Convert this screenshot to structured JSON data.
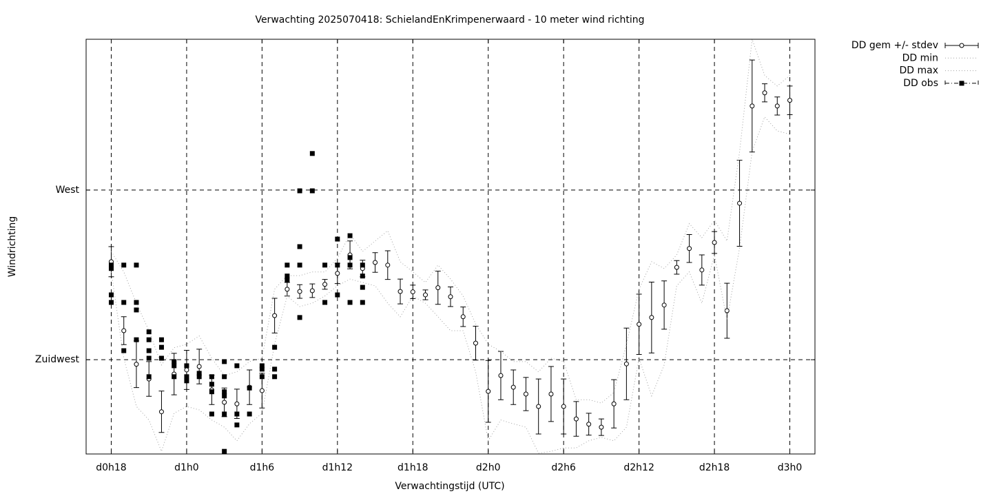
{
  "chart_data": {
    "type": "errorbar",
    "title": "Verwachting 2025070418: SchielandEnKrimpenerwaard - 10 meter wind richting",
    "xlabel": "Verwachtingstijd (UTC)",
    "ylabel": "Windrichting",
    "xlim": [
      16,
      74
    ],
    "ylim": [
      200,
      310
    ],
    "xticks": [
      {
        "value": 18,
        "label": "d0h18"
      },
      {
        "value": 24,
        "label": "d1h0"
      },
      {
        "value": 30,
        "label": "d1h6"
      },
      {
        "value": 36,
        "label": "d1h12"
      },
      {
        "value": 42,
        "label": "d1h18"
      },
      {
        "value": 48,
        "label": "d2h0"
      },
      {
        "value": 54,
        "label": "d2h6"
      },
      {
        "value": 60,
        "label": "d2h12"
      },
      {
        "value": 66,
        "label": "d2h18"
      },
      {
        "value": 72,
        "label": "d3h0"
      }
    ],
    "yticks": [
      {
        "value": 225,
        "label": "Zuidwest"
      },
      {
        "value": 270,
        "label": "West"
      }
    ],
    "grid": true,
    "legend": "outside-top-right",
    "series": [
      {
        "name": "DD gem +/- stdev",
        "kind": "errorbar",
        "color": "#000000",
        "x": [
          18,
          19,
          20,
          21,
          22,
          23,
          24,
          25,
          26,
          27,
          28,
          29,
          30,
          31,
          32,
          33,
          34,
          35,
          36,
          37,
          38,
          39,
          40,
          41,
          42,
          43,
          44,
          45,
          46,
          47,
          48,
          49,
          50,
          51,
          52,
          53,
          54,
          55,
          56,
          57,
          58,
          59,
          60,
          61,
          62,
          63,
          64,
          65,
          66,
          67,
          68,
          69,
          70,
          71,
          72
        ],
        "values": [
          251.0,
          232.7,
          223.8,
          219.9,
          211.2,
          221.2,
          222.3,
          223.2,
          217.0,
          213.7,
          213.3,
          217.7,
          216.8,
          236.7,
          243.7,
          243.1,
          243.3,
          245.0,
          247.9,
          252.8,
          249.2,
          250.8,
          250.1,
          243.1,
          243.0,
          242.2,
          244.1,
          241.7,
          236.4,
          229.4,
          216.6,
          220.8,
          217.7,
          215.9,
          212.6,
          215.9,
          212.6,
          209.3,
          207.9,
          207.1,
          213.3,
          223.9,
          234.4,
          236.2,
          239.5,
          249.5,
          254.5,
          248.8,
          256.1,
          238.0,
          266.5,
          292.3,
          295.8,
          292.3,
          293.8
        ],
        "errors": [
          4.0,
          3.7,
          6.2,
          4.6,
          5.5,
          5.5,
          5.2,
          4.6,
          3.9,
          3.8,
          3.9,
          4.6,
          4.6,
          4.6,
          1.8,
          1.8,
          1.8,
          1.3,
          2.7,
          3.7,
          2.2,
          2.6,
          3.8,
          3.3,
          1.8,
          1.3,
          4.4,
          2.6,
          2.6,
          4.5,
          8.2,
          6.4,
          4.6,
          4.4,
          7.3,
          7.3,
          7.3,
          4.6,
          2.9,
          2.2,
          6.4,
          9.5,
          8.0,
          9.4,
          6.4,
          1.8,
          3.7,
          4.0,
          2.9,
          7.3,
          11.4,
          12.2,
          2.4,
          2.4,
          3.8
        ]
      },
      {
        "name": "DD min",
        "kind": "dotted",
        "color": "#a0a0a0",
        "x": [
          18,
          19,
          20,
          21,
          22,
          23,
          24,
          25,
          26,
          27,
          28,
          29,
          30,
          31,
          32,
          33,
          34,
          35,
          36,
          37,
          38,
          39,
          40,
          41,
          42,
          43,
          44,
          45,
          46,
          47,
          48,
          49,
          50,
          51,
          52,
          53,
          54,
          55,
          56,
          57,
          58,
          59,
          60,
          61,
          62,
          63,
          64,
          65,
          66,
          67,
          68,
          69,
          70,
          71,
          72
        ],
        "values": [
          248.3,
          225.4,
          212.6,
          209.0,
          200.7,
          210.8,
          212.6,
          211.7,
          209.0,
          207.1,
          203.5,
          208.0,
          210.8,
          229.1,
          241.9,
          239.1,
          240.0,
          241.9,
          244.6,
          246.4,
          245.5,
          244.6,
          240.0,
          236.4,
          241.9,
          240.0,
          236.4,
          232.7,
          232.7,
          221.8,
          203.5,
          209.0,
          208.0,
          207.1,
          200.2,
          200.7,
          201.6,
          201.6,
          203.5,
          204.4,
          203.5,
          207.1,
          225.4,
          215.4,
          223.6,
          244.6,
          248.3,
          240.0,
          252.8,
          235.5,
          254.7,
          280.2,
          289.4,
          285.7,
          284.8
        ]
      },
      {
        "name": "DD max",
        "kind": "dotted",
        "color": "#a0a0a0",
        "x": [
          18,
          19,
          20,
          21,
          22,
          23,
          24,
          25,
          26,
          27,
          28,
          29,
          30,
          31,
          32,
          33,
          34,
          35,
          36,
          37,
          38,
          39,
          40,
          41,
          42,
          43,
          44,
          45,
          46,
          47,
          48,
          49,
          50,
          51,
          52,
          53,
          54,
          55,
          56,
          57,
          58,
          59,
          60,
          61,
          62,
          63,
          64,
          65,
          66,
          67,
          68,
          69,
          70,
          71,
          72
        ],
        "values": [
          253.7,
          248.3,
          240.0,
          232.7,
          223.6,
          228.2,
          229.1,
          231.3,
          225.4,
          220.8,
          221.8,
          224.5,
          225.4,
          243.7,
          247.3,
          247.3,
          248.3,
          248.3,
          251.9,
          258.3,
          253.7,
          256.5,
          259.2,
          251.0,
          248.3,
          245.5,
          250.1,
          246.4,
          241.9,
          234.5,
          229.1,
          227.2,
          224.5,
          224.5,
          221.8,
          225.4,
          224.5,
          214.4,
          214.4,
          213.5,
          216.3,
          229.1,
          243.7,
          251.0,
          249.2,
          252.8,
          261.1,
          257.4,
          262.0,
          256.5,
          280.2,
          310.0,
          300.4,
          297.6,
          300.4
        ]
      },
      {
        "name": "DD obs",
        "kind": "points",
        "color": "#000000",
        "x": [
          18,
          18,
          18,
          18,
          19,
          19,
          19,
          20,
          20,
          20,
          20,
          21,
          21,
          21,
          21,
          21,
          22,
          22,
          22,
          23,
          23,
          23,
          24,
          24,
          24,
          25,
          25,
          26,
          26,
          26,
          26,
          27,
          27,
          27,
          27,
          27,
          27,
          28,
          28,
          28,
          29,
          29,
          30,
          30,
          30,
          31,
          31,
          31,
          32,
          32,
          32,
          33,
          33,
          33,
          33,
          34,
          34,
          35,
          35,
          36,
          36,
          36,
          37,
          37,
          37,
          37,
          38,
          38,
          38,
          38
        ],
        "values": [
          249.2,
          250.1,
          242.2,
          240.2,
          250.1,
          240.2,
          227.4,
          250.1,
          240.2,
          238.2,
          230.3,
          232.4,
          230.3,
          227.4,
          225.4,
          220.5,
          230.3,
          228.3,
          225.4,
          224.5,
          223.4,
          220.5,
          223.4,
          220.5,
          219.4,
          220.5,
          221.4,
          220.5,
          218.5,
          216.5,
          210.6,
          224.5,
          220.5,
          216.5,
          215.4,
          210.6,
          200.7,
          223.4,
          210.6,
          207.7,
          217.5,
          210.6,
          223.4,
          222.5,
          220.5,
          228.3,
          222.5,
          220.5,
          250.1,
          247.2,
          246.2,
          269.8,
          255.0,
          250.1,
          236.2,
          279.7,
          269.8,
          250.1,
          240.2,
          257.0,
          250.1,
          242.2,
          257.9,
          252.1,
          250.1,
          240.2,
          250.1,
          247.2,
          244.2,
          240.2
        ]
      }
    ]
  }
}
